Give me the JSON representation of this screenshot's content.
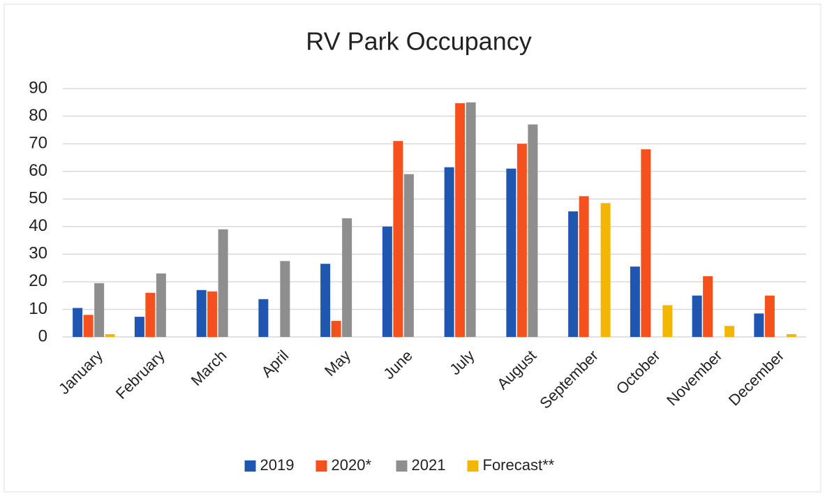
{
  "chart_data": {
    "type": "bar",
    "title": "RV Park Occupancy",
    "categories": [
      "January",
      "February",
      "March",
      "April",
      "May",
      "June",
      "July",
      "August",
      "September",
      "October",
      "November",
      "December"
    ],
    "series": [
      {
        "name": "2019",
        "color": "#1f56b0",
        "values": [
          10.5,
          7.3,
          17,
          13.7,
          26.5,
          40,
          61.5,
          61,
          45.5,
          25.5,
          15,
          8.5
        ]
      },
      {
        "name": "2020*",
        "color": "#f4511e",
        "values": [
          8,
          16,
          16.5,
          null,
          5.8,
          71,
          84.7,
          70,
          51,
          68,
          22,
          15
        ]
      },
      {
        "name": "2021",
        "color": "#8e8e8e",
        "values": [
          19.5,
          23,
          39,
          27.5,
          43,
          59,
          85,
          77,
          null,
          null,
          null,
          null
        ]
      },
      {
        "name": "Forecast**",
        "color": "#f2b705",
        "values": [
          1,
          null,
          null,
          null,
          null,
          null,
          null,
          null,
          48.5,
          11.5,
          4,
          1
        ]
      }
    ],
    "ylim": [
      0,
      90
    ],
    "yticks": [
      0,
      10,
      20,
      30,
      40,
      50,
      60,
      70,
      80,
      90
    ],
    "grid": true,
    "legend": "bottom"
  }
}
